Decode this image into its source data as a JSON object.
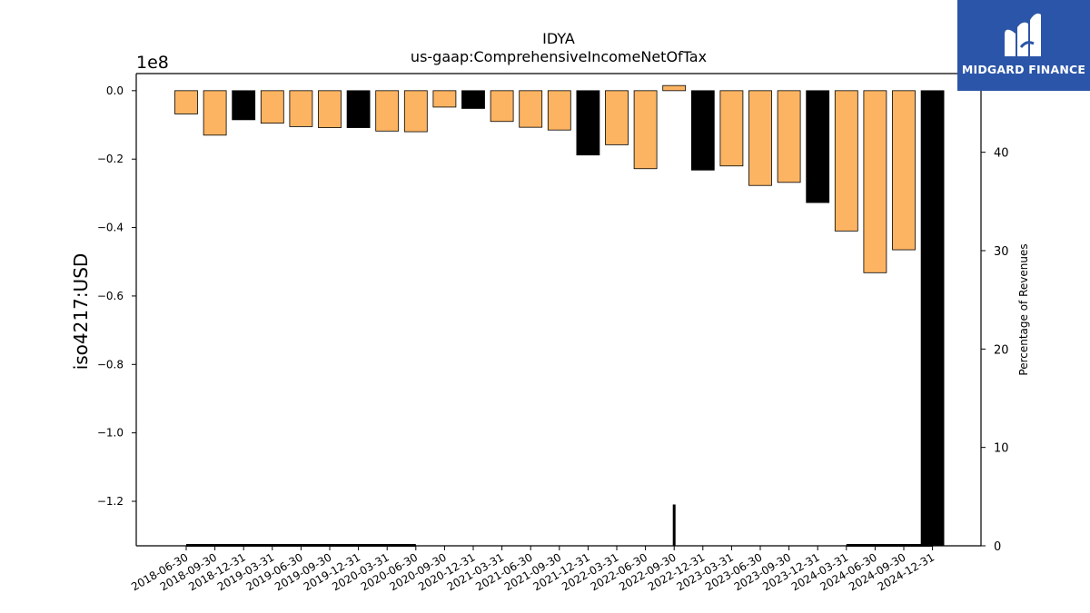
{
  "chart_data": {
    "type": "bar",
    "title": "IDYA",
    "subtitle": "us-gaap:ComprehensiveIncomeNetOfTax",
    "ylabel": "iso4217:USD",
    "y_scale_label": "1e8",
    "y2label": "Percentage of Revenues",
    "ylim": [
      -1.33,
      0.05
    ],
    "y_ticks": [
      0.0,
      -0.2,
      -0.4,
      -0.6,
      -0.8,
      -1.0,
      -1.2
    ],
    "y2lim": [
      0,
      48
    ],
    "y2_ticks": [
      0,
      10,
      20,
      30,
      40
    ],
    "categories": [
      "2018-06-30",
      "2018-09-30",
      "2018-12-31",
      "2019-03-31",
      "2019-06-30",
      "2019-09-30",
      "2019-12-31",
      "2020-03-31",
      "2020-06-30",
      "2020-09-30",
      "2020-12-31",
      "2021-03-31",
      "2021-06-30",
      "2021-09-30",
      "2021-12-31",
      "2022-03-31",
      "2022-06-30",
      "2022-09-30",
      "2022-12-31",
      "2023-03-31",
      "2023-06-30",
      "2023-09-30",
      "2023-12-31",
      "2024-03-31",
      "2024-06-30",
      "2024-09-30",
      "2024-12-31"
    ],
    "values": [
      -0.068,
      -0.13,
      -0.085,
      -0.095,
      -0.105,
      -0.108,
      -0.108,
      -0.118,
      -0.12,
      -0.048,
      -0.052,
      -0.09,
      -0.107,
      -0.115,
      -0.188,
      -0.158,
      -0.228,
      0.015,
      -0.232,
      -0.22,
      -0.277,
      -0.268,
      -0.327,
      -0.41,
      -0.532,
      -0.465,
      -1.33
    ],
    "bar_colors": [
      "#fdb462",
      "#fdb462",
      "#000000",
      "#fdb462",
      "#fdb462",
      "#fdb462",
      "#000000",
      "#fdb462",
      "#fdb462",
      "#fdb462",
      "#000000",
      "#fdb462",
      "#fdb462",
      "#fdb462",
      "#000000",
      "#fdb462",
      "#fdb462",
      "#fdb462",
      "#000000",
      "#fdb462",
      "#fdb462",
      "#fdb462",
      "#000000",
      "#fdb462",
      "#fdb462",
      "#fdb462",
      "#000000"
    ],
    "percentage_line": {
      "x": [
        "2018-06-30",
        "2018-09-30",
        "2018-12-31",
        "2019-03-31",
        "2019-06-30",
        "2019-09-30",
        "2019-12-31",
        "2020-03-31",
        "2020-06-30",
        "2022-06-30",
        "2022-09-30",
        "2022-09-30",
        "2022-09-30",
        "2022-12-31",
        "2024-03-31",
        "2024-06-30",
        "2024-09-30",
        "2024-12-31"
      ],
      "y": [
        0.05,
        0.05,
        0.05,
        0.05,
        0.05,
        0.05,
        0.05,
        0.05,
        0.05,
        null,
        0,
        4.2,
        0,
        null,
        0.05,
        0.05,
        0.05,
        0.05
      ]
    },
    "grid": false,
    "legend": "none"
  },
  "logo": {
    "text": "MIDGARD FINANCE",
    "colors": {
      "background": "#2b55a8",
      "foreground": "#ffffff"
    }
  }
}
